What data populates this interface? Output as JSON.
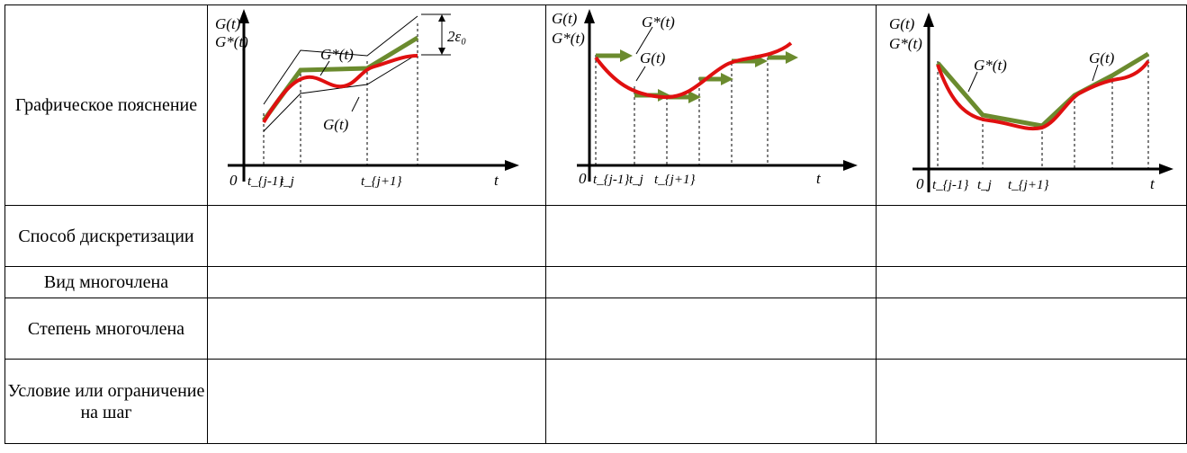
{
  "rows": [
    {
      "label": "Графическое пояснение"
    },
    {
      "label": "Способ дискретизации"
    },
    {
      "label": "Вид многочлена"
    },
    {
      "label": "Степень многочлена"
    },
    {
      "label": "Условие или ограничение на шаг"
    }
  ],
  "graphs": [
    {
      "y_label_1": "G(t)",
      "y_label_2": "G*(t)",
      "origin": "0",
      "x_label": "t",
      "ticks": [
        "t_{j-1}",
        "t_j",
        "t_{j+1}"
      ],
      "curve_labels": [
        "G*(t)",
        "G(t)"
      ],
      "annotation": "2ε₀",
      "colors": {
        "exact": "#e01010",
        "approx": "#6b8b2e"
      }
    },
    {
      "y_label_1": "G(t)",
      "y_label_2": "G*(t)",
      "origin": "0",
      "x_label": "t",
      "ticks": [
        "t_{j-1}",
        "t_j",
        "t_{j+1}"
      ],
      "curve_labels": [
        "G*(t)",
        "G(t)"
      ]
    },
    {
      "y_label_1": "G(t)",
      "y_label_2": "G*(t)",
      "origin": "0",
      "x_label": "t",
      "ticks": [
        "t_{j-1}",
        "t_j",
        "t_{j+1}"
      ],
      "curve_labels": [
        "G*(t)",
        "G(t)"
      ]
    }
  ]
}
